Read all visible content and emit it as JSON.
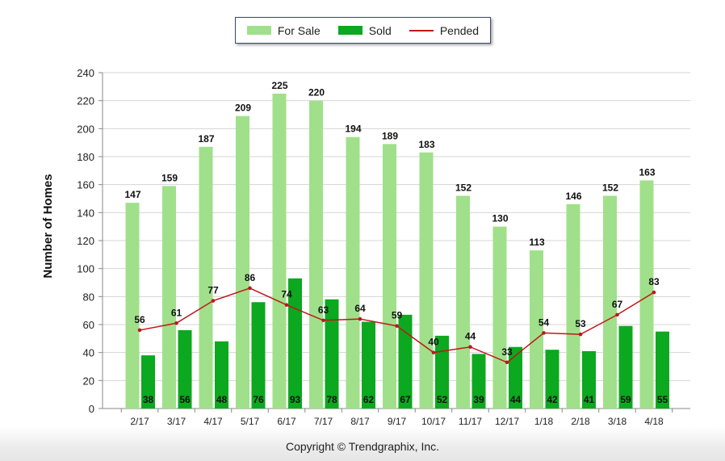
{
  "legend": {
    "for_sale": "For Sale",
    "sold": "Sold",
    "pended": "Pended"
  },
  "colors": {
    "for_sale": "#a0e08a",
    "sold": "#0ca81f",
    "pended": "#c0161b"
  },
  "copyright": "Copyright © Trendgraphix, Inc.",
  "chart_data": {
    "type": "bar",
    "categories": [
      "2/17",
      "3/17",
      "4/17",
      "5/17",
      "6/17",
      "7/17",
      "8/17",
      "9/17",
      "10/17",
      "11/17",
      "12/17",
      "1/18",
      "2/18",
      "3/18",
      "4/18"
    ],
    "series": [
      {
        "name": "For Sale",
        "type": "bar",
        "values": [
          147,
          159,
          187,
          209,
          225,
          220,
          194,
          189,
          183,
          152,
          130,
          113,
          146,
          152,
          163
        ]
      },
      {
        "name": "Sold",
        "type": "bar",
        "values": [
          38,
          56,
          48,
          76,
          93,
          78,
          62,
          67,
          52,
          39,
          44,
          42,
          41,
          59,
          55
        ]
      },
      {
        "name": "Pended",
        "type": "line",
        "values": [
          56,
          61,
          77,
          86,
          74,
          63,
          64,
          59,
          40,
          44,
          33,
          54,
          53,
          67,
          83
        ]
      }
    ],
    "xlabel": "",
    "ylabel": "Number of Homes",
    "ylim": [
      0,
      240
    ],
    "yticks": [
      0,
      20,
      40,
      60,
      80,
      100,
      120,
      140,
      160,
      180,
      200,
      220,
      240
    ],
    "grid": true,
    "legend_position": "top-center"
  }
}
